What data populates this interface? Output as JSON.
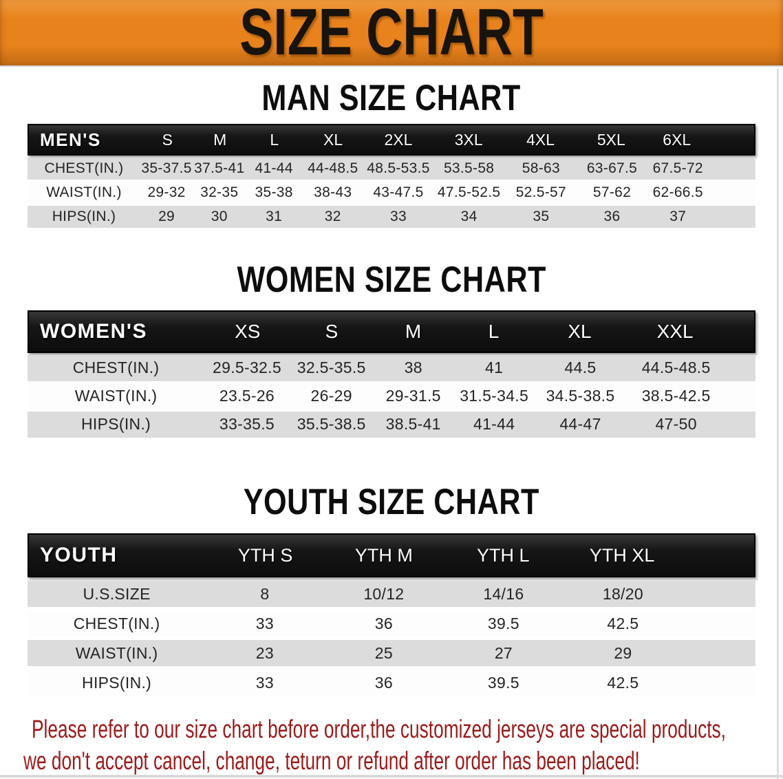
{
  "banner": {
    "title": "SIZE CHART"
  },
  "colors": {
    "banner_bg": "#E8821C",
    "header_bar_bg": "#161616",
    "row_stripe": "#DCDCDC",
    "disclaimer_text": "#9C1A1A"
  },
  "sections": [
    {
      "heading": "MAN SIZE CHART",
      "table": {
        "header_label": "MEN'S",
        "columns": [
          "S",
          "M",
          "L",
          "XL",
          "2XL",
          "3XL",
          "4XL",
          "5XL",
          "6XL"
        ],
        "rows": [
          {
            "label": "CHEST(IN.)",
            "values": [
              "35-37.5",
              "37.5-41",
              "41-44",
              "44-48.5",
              "48.5-53.5",
              "53.5-58",
              "58-63",
              "63-67.5",
              "67.5-72"
            ]
          },
          {
            "label": "WAIST(IN.)",
            "values": [
              "29-32",
              "32-35",
              "35-38",
              "38-43",
              "43-47.5",
              "47.5-52.5",
              "52.5-57",
              "57-62",
              "62-66.5"
            ]
          },
          {
            "label": "HIPS(IN.)",
            "values": [
              "29",
              "30",
              "31",
              "32",
              "33",
              "34",
              "35",
              "36",
              "37"
            ]
          }
        ]
      }
    },
    {
      "heading": "WOMEN SIZE CHART",
      "table": {
        "header_label": "WOMEN'S",
        "columns": [
          "XS",
          "S",
          "M",
          "L",
          "XL",
          "XXL"
        ],
        "rows": [
          {
            "label": "CHEST(IN.)",
            "values": [
              "29.5-32.5",
              "32.5-35.5",
              "38",
              "41",
              "44.5",
              "44.5-48.5"
            ]
          },
          {
            "label": "WAIST(IN.)",
            "values": [
              "23.5-26",
              "26-29",
              "29-31.5",
              "31.5-34.5",
              "34.5-38.5",
              "38.5-42.5"
            ]
          },
          {
            "label": "HIPS(IN.)",
            "values": [
              "33-35.5",
              "35.5-38.5",
              "38.5-41",
              "41-44",
              "44-47",
              "47-50"
            ]
          }
        ]
      }
    },
    {
      "heading": "YOUTH SIZE CHART",
      "table": {
        "header_label": "YOUTH",
        "columns": [
          "YTH S",
          "YTH M",
          "YTH L",
          "YTH XL"
        ],
        "rows": [
          {
            "label": "U.S.SIZE",
            "values": [
              "8",
              "10/12",
              "14/16",
              "18/20"
            ]
          },
          {
            "label": "CHEST(IN.)",
            "values": [
              "33",
              "36",
              "39.5",
              "42.5"
            ]
          },
          {
            "label": "WAIST(IN.)",
            "values": [
              "23",
              "25",
              "27",
              "29"
            ]
          },
          {
            "label": "HIPS(IN.)",
            "values": [
              "33",
              "36",
              "39.5",
              "42.5"
            ]
          }
        ]
      }
    }
  ],
  "disclaimer": {
    "lines": [
      "Please refer to our size chart before order,the customized jerseys are special products,",
      "we don't accept cancel, change, teturn or refund after order has been placed!"
    ]
  }
}
